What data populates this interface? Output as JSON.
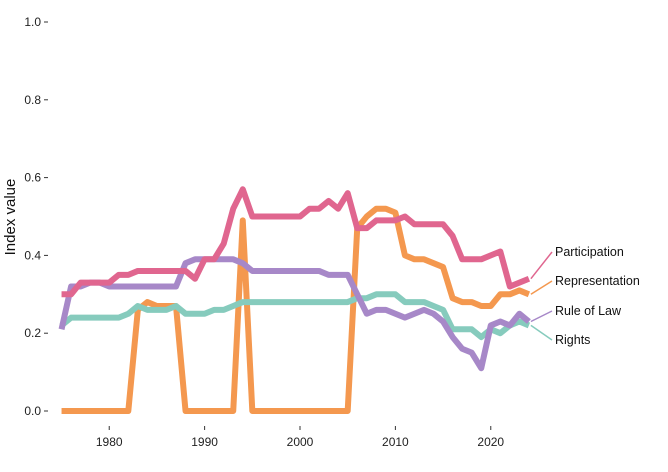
{
  "chart_data": {
    "type": "line",
    "title": "",
    "xlabel": "",
    "ylabel": "Index value",
    "xlim": [
      1974,
      2026
    ],
    "ylim": [
      0,
      1
    ],
    "x_ticks": [
      "1980",
      "1990",
      "2000",
      "2010",
      "2020"
    ],
    "y_ticks": [
      "0.0",
      "0.2",
      "0.4",
      "0.6",
      "0.8",
      "1.0"
    ],
    "grid": false,
    "legend": "direct labels at right",
    "years": [
      1975,
      1976,
      1977,
      1978,
      1979,
      1980,
      1981,
      1982,
      1983,
      1984,
      1985,
      1986,
      1987,
      1988,
      1989,
      1990,
      1991,
      1992,
      1993,
      1994,
      1995,
      1996,
      1997,
      1998,
      1999,
      2000,
      2001,
      2002,
      2003,
      2004,
      2005,
      2006,
      2007,
      2008,
      2009,
      2010,
      2011,
      2012,
      2013,
      2014,
      2015,
      2016,
      2017,
      2018,
      2019,
      2020,
      2021,
      2022,
      2023,
      2024
    ],
    "series": [
      {
        "name": "Participation",
        "color": "#e0668f",
        "values": [
          0.3,
          0.3,
          0.33,
          0.33,
          0.33,
          0.33,
          0.35,
          0.35,
          0.36,
          0.36,
          0.36,
          0.36,
          0.36,
          0.36,
          0.34,
          0.39,
          0.39,
          0.43,
          0.52,
          0.57,
          0.5,
          0.5,
          0.5,
          0.5,
          0.5,
          0.5,
          0.52,
          0.52,
          0.54,
          0.52,
          0.56,
          0.47,
          0.47,
          0.49,
          0.49,
          0.49,
          0.5,
          0.48,
          0.48,
          0.48,
          0.48,
          0.45,
          0.39,
          0.39,
          0.39,
          0.4,
          0.41,
          0.32,
          0.33,
          0.34
        ]
      },
      {
        "name": "Representation",
        "color": "#f4984f",
        "values": [
          0,
          0,
          0,
          0,
          0,
          0,
          0,
          0,
          0.26,
          0.28,
          0.27,
          0.27,
          0.27,
          0,
          0,
          0,
          0,
          0,
          0,
          0.49,
          0,
          0,
          0,
          0,
          0,
          0,
          0,
          0,
          0,
          0,
          0,
          0.47,
          0.5,
          0.52,
          0.52,
          0.51,
          0.4,
          0.39,
          0.39,
          0.38,
          0.37,
          0.29,
          0.28,
          0.28,
          0.27,
          0.27,
          0.3,
          0.3,
          0.31,
          0.3
        ]
      },
      {
        "name": "Rule of Law",
        "color": "#a788c8",
        "values": [
          0.21,
          0.32,
          0.32,
          0.33,
          0.33,
          0.32,
          0.32,
          0.32,
          0.32,
          0.32,
          0.32,
          0.32,
          0.32,
          0.38,
          0.39,
          0.39,
          0.39,
          0.39,
          0.39,
          0.38,
          0.36,
          0.36,
          0.36,
          0.36,
          0.36,
          0.36,
          0.36,
          0.36,
          0.35,
          0.35,
          0.35,
          0.3,
          0.25,
          0.26,
          0.26,
          0.25,
          0.24,
          0.25,
          0.26,
          0.25,
          0.23,
          0.19,
          0.16,
          0.15,
          0.11,
          0.22,
          0.23,
          0.22,
          0.25,
          0.23
        ]
      },
      {
        "name": "Rights",
        "color": "#86cbbd",
        "values": [
          0.22,
          0.24,
          0.24,
          0.24,
          0.24,
          0.24,
          0.24,
          0.25,
          0.27,
          0.26,
          0.26,
          0.26,
          0.27,
          0.25,
          0.25,
          0.25,
          0.26,
          0.26,
          0.27,
          0.28,
          0.28,
          0.28,
          0.28,
          0.28,
          0.28,
          0.28,
          0.28,
          0.28,
          0.28,
          0.28,
          0.28,
          0.29,
          0.29,
          0.3,
          0.3,
          0.3,
          0.28,
          0.28,
          0.28,
          0.27,
          0.26,
          0.21,
          0.21,
          0.21,
          0.19,
          0.21,
          0.2,
          0.22,
          0.23,
          0.22
        ]
      }
    ],
    "label_order": [
      "Participation",
      "Representation",
      "Rule of Law",
      "Rights"
    ]
  }
}
